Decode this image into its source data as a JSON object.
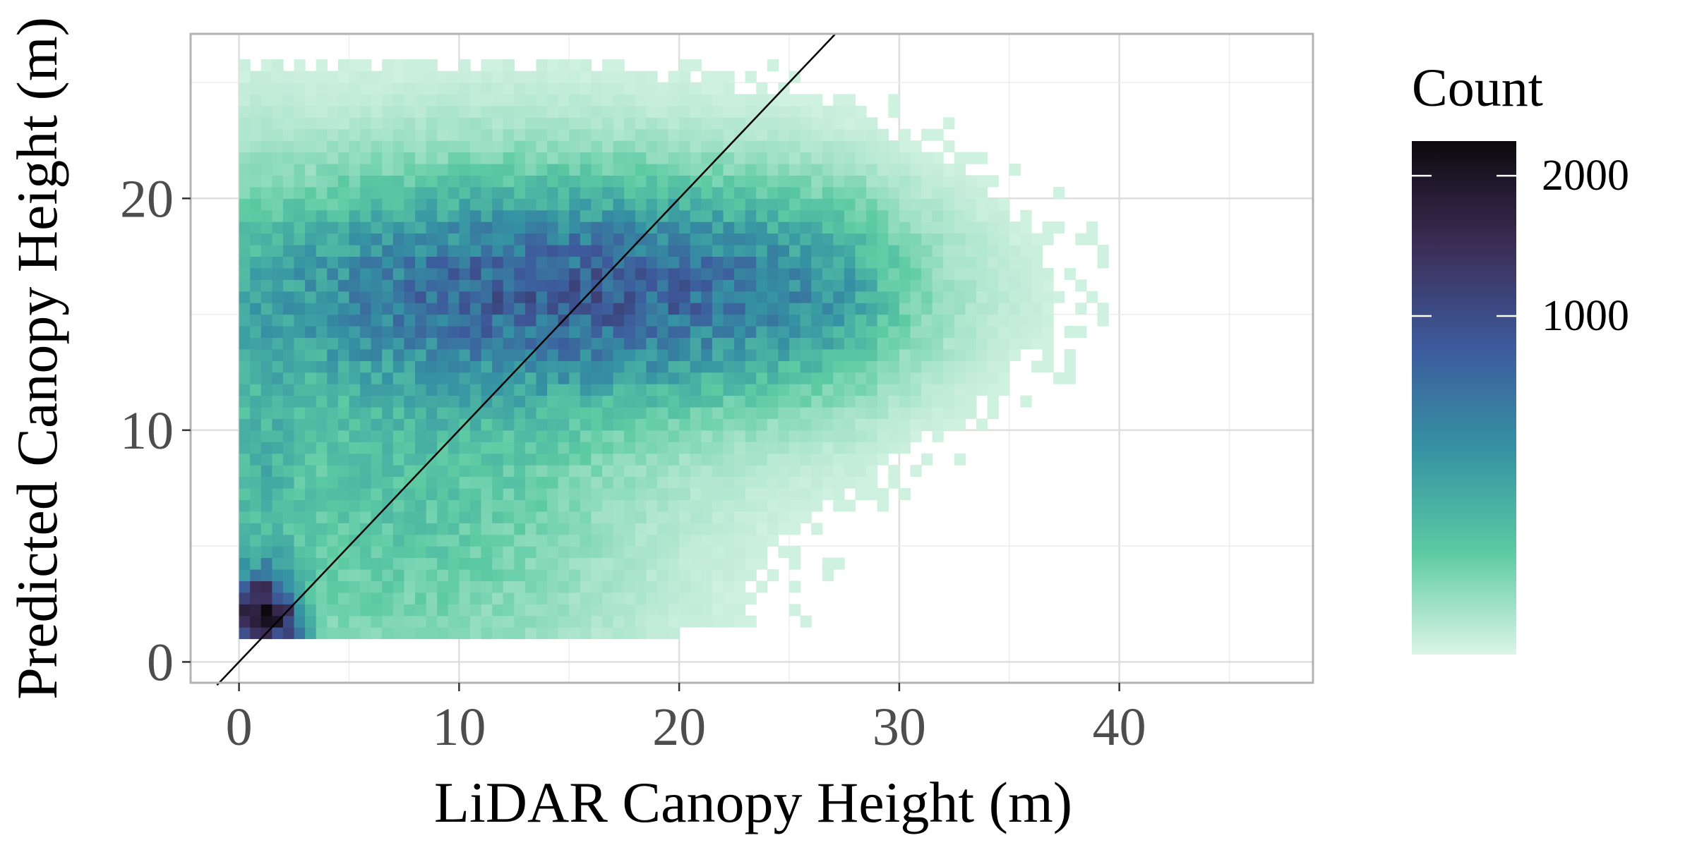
{
  "chart_data": {
    "type": "heatmap",
    "xlabel": "LiDAR Canopy Height (m)",
    "ylabel": "Predicted Canopy Height (m)",
    "xlim": [
      -2.2,
      48.8
    ],
    "ylim": [
      -0.9,
      27.1
    ],
    "x_ticks": [
      "0",
      "10",
      "20",
      "30",
      "40"
    ],
    "y_ticks": [
      "0",
      "10",
      "20"
    ],
    "grid": true,
    "reference_line": {
      "type": "1:1",
      "slope": 1,
      "intercept": 0
    },
    "bin_width": 0.5,
    "legend": {
      "title": "Count",
      "labels": [
        "2000",
        "1000"
      ],
      "position": "right",
      "scale": "sqrt",
      "max_count": 2300
    },
    "colors": [
      "#dcf5e6",
      "#5ccaa3",
      "#3592a3",
      "#3d5a9c",
      "#3b2c55",
      "#0c0a0e"
    ],
    "density_components": [
      {
        "cx": 16,
        "cy": 16,
        "sx": 8.5,
        "sy": 2.3,
        "peak": 700
      },
      {
        "cx": 11,
        "cy": 15,
        "sx": 7,
        "sy": 3.5,
        "peak": 180
      },
      {
        "cx": 7,
        "cy": 7,
        "sx": 5.5,
        "sy": 4.5,
        "peak": 110
      },
      {
        "cx": 1.2,
        "cy": 1.8,
        "sx": 0.9,
        "sy": 1.2,
        "peak": 2100
      },
      {
        "cx": 1,
        "cy": 8,
        "sx": 1.1,
        "sy": 6,
        "peak": 120
      }
    ]
  }
}
